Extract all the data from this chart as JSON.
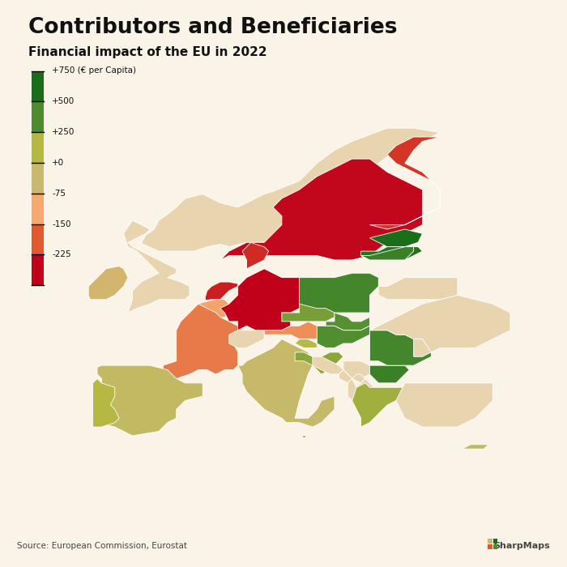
{
  "title": "Contributors and Beneficiaries",
  "subtitle": "Financial impact of the EU in 2022",
  "source": "Source: European Commission, Eurostat",
  "watermark": "SharpMaps",
  "background_color": "#faf3e8",
  "country_values": {
    "Sweden": -220,
    "Finland": -180,
    "Norway": null,
    "Denmark": -190,
    "Estonia": 800,
    "Latvia": 700,
    "Lithuania": 600,
    "Poland": 550,
    "Czech Republic": 400,
    "Slovakia": 480,
    "Hungary": 490,
    "Romania": 550,
    "Bulgaria": 600,
    "Greece": 300,
    "Croatia": 350,
    "Slovenia": 200,
    "Austria": -100,
    "Germany": -225,
    "Netherlands": -200,
    "Belgium": -80,
    "Luxembourg": -150,
    "France": -120,
    "Spain": 60,
    "Portugal": 250,
    "Italy": 30,
    "Ireland": -20,
    "United Kingdom": null,
    "Switzerland": null,
    "Iceland": null,
    "Malta": 150,
    "Cyprus": 80,
    "Turkey": null,
    "Belarus": null,
    "Ukraine": null,
    "Moldova": null,
    "Serbia": null,
    "Bosnia": null,
    "Montenegro": null,
    "Albania": null,
    "North Macedonia": null,
    "Kosovo": null
  },
  "color_stops": [
    [
      750,
      "#1a6e1a"
    ],
    [
      500,
      "#4d8c2f"
    ],
    [
      250,
      "#b5b842"
    ],
    [
      0,
      "#c8b96e"
    ],
    [
      -75,
      "#f5a96e"
    ],
    [
      -150,
      "#e05a30"
    ],
    [
      -225,
      "#c0001a"
    ]
  ],
  "non_eu_color": "#e8d5b0",
  "ocean_color": "#faf3e8",
  "legend_stops": [
    [
      "+750 (€ per Capita)",
      "#1a6e1a"
    ],
    [
      "+500",
      "#4d8c2f"
    ],
    [
      "+250",
      "#b5b842"
    ],
    [
      "+0",
      "#c8b96e"
    ],
    [
      "-75",
      "#f5a96e"
    ],
    [
      "-150",
      "#e05a30"
    ],
    [
      "-225",
      "#c0001a"
    ]
  ]
}
